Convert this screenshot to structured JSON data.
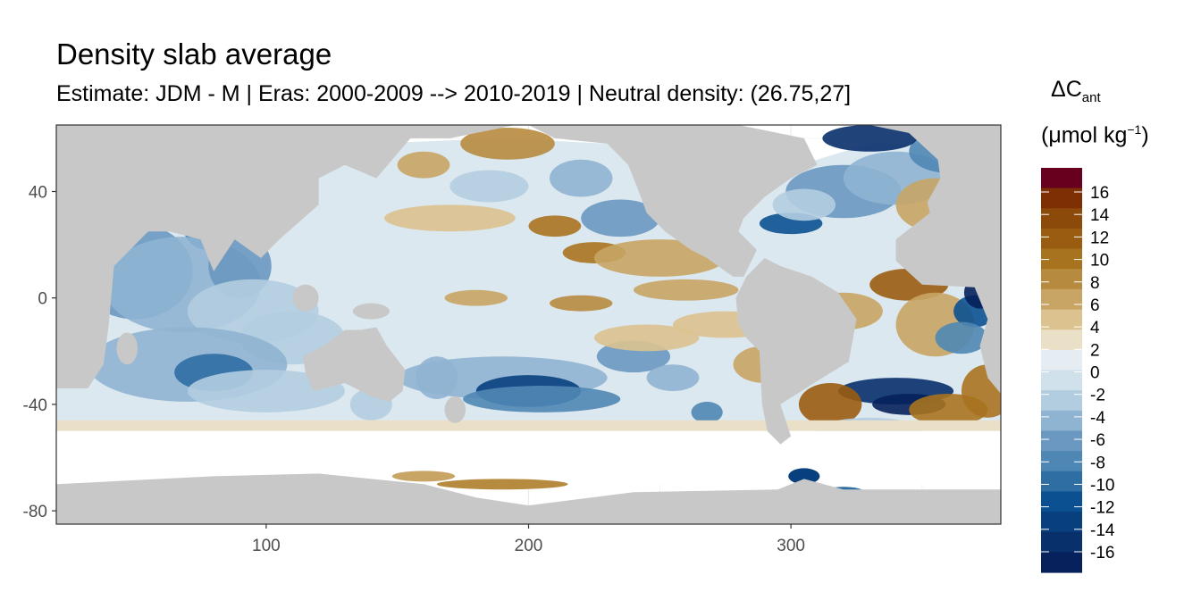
{
  "chart_data": {
    "type": "heatmap",
    "title": "Density slab average",
    "subtitle": "Estimate: JDM - M | Eras: 2000-2009 --> 2010-2019 | Neutral density: (26.75,27]",
    "xlabel": "",
    "ylabel": "",
    "xlim": [
      20,
      380
    ],
    "ylim": [
      -85,
      65
    ],
    "x_ticks": [
      "100",
      "200",
      "300"
    ],
    "x_tick_values": [
      100,
      200,
      300
    ],
    "y_ticks": [
      "40",
      "0",
      "-40",
      "-80"
    ],
    "y_tick_values": [
      40,
      0,
      -40,
      -80
    ],
    "grid": true,
    "legend_position": "right",
    "legend": {
      "title_main": "ΔC",
      "title_sub": "ant",
      "unit_main": "(μmol kg",
      "unit_sup": "−1",
      "unit_close": ")",
      "labels": [
        "16",
        "14",
        "12",
        "10",
        "8",
        "6",
        "4",
        "2",
        "0",
        "-2",
        "-4",
        "-6",
        "-8",
        "-10",
        "-12",
        "-14",
        "-16"
      ],
      "colors": [
        "#67001f",
        "#7f2f04",
        "#8c4a0a",
        "#9a5c10",
        "#a8731f",
        "#b78b3f",
        "#c8a565",
        "#dbc28f",
        "#eadfc7",
        "#e6edf2",
        "#d0e1ec",
        "#b3cde0",
        "#8fb4d2",
        "#6a98c0",
        "#4f87b4",
        "#2f6ea3",
        "#0b5191",
        "#08407e",
        "#08306b",
        "#06215b"
      ]
    },
    "colors": {
      "land": "#c8c8c8",
      "panel": "#ffffff",
      "grid": "#ebebeb",
      "axis_text": "#4d4d4d",
      "border": "#333333"
    }
  }
}
